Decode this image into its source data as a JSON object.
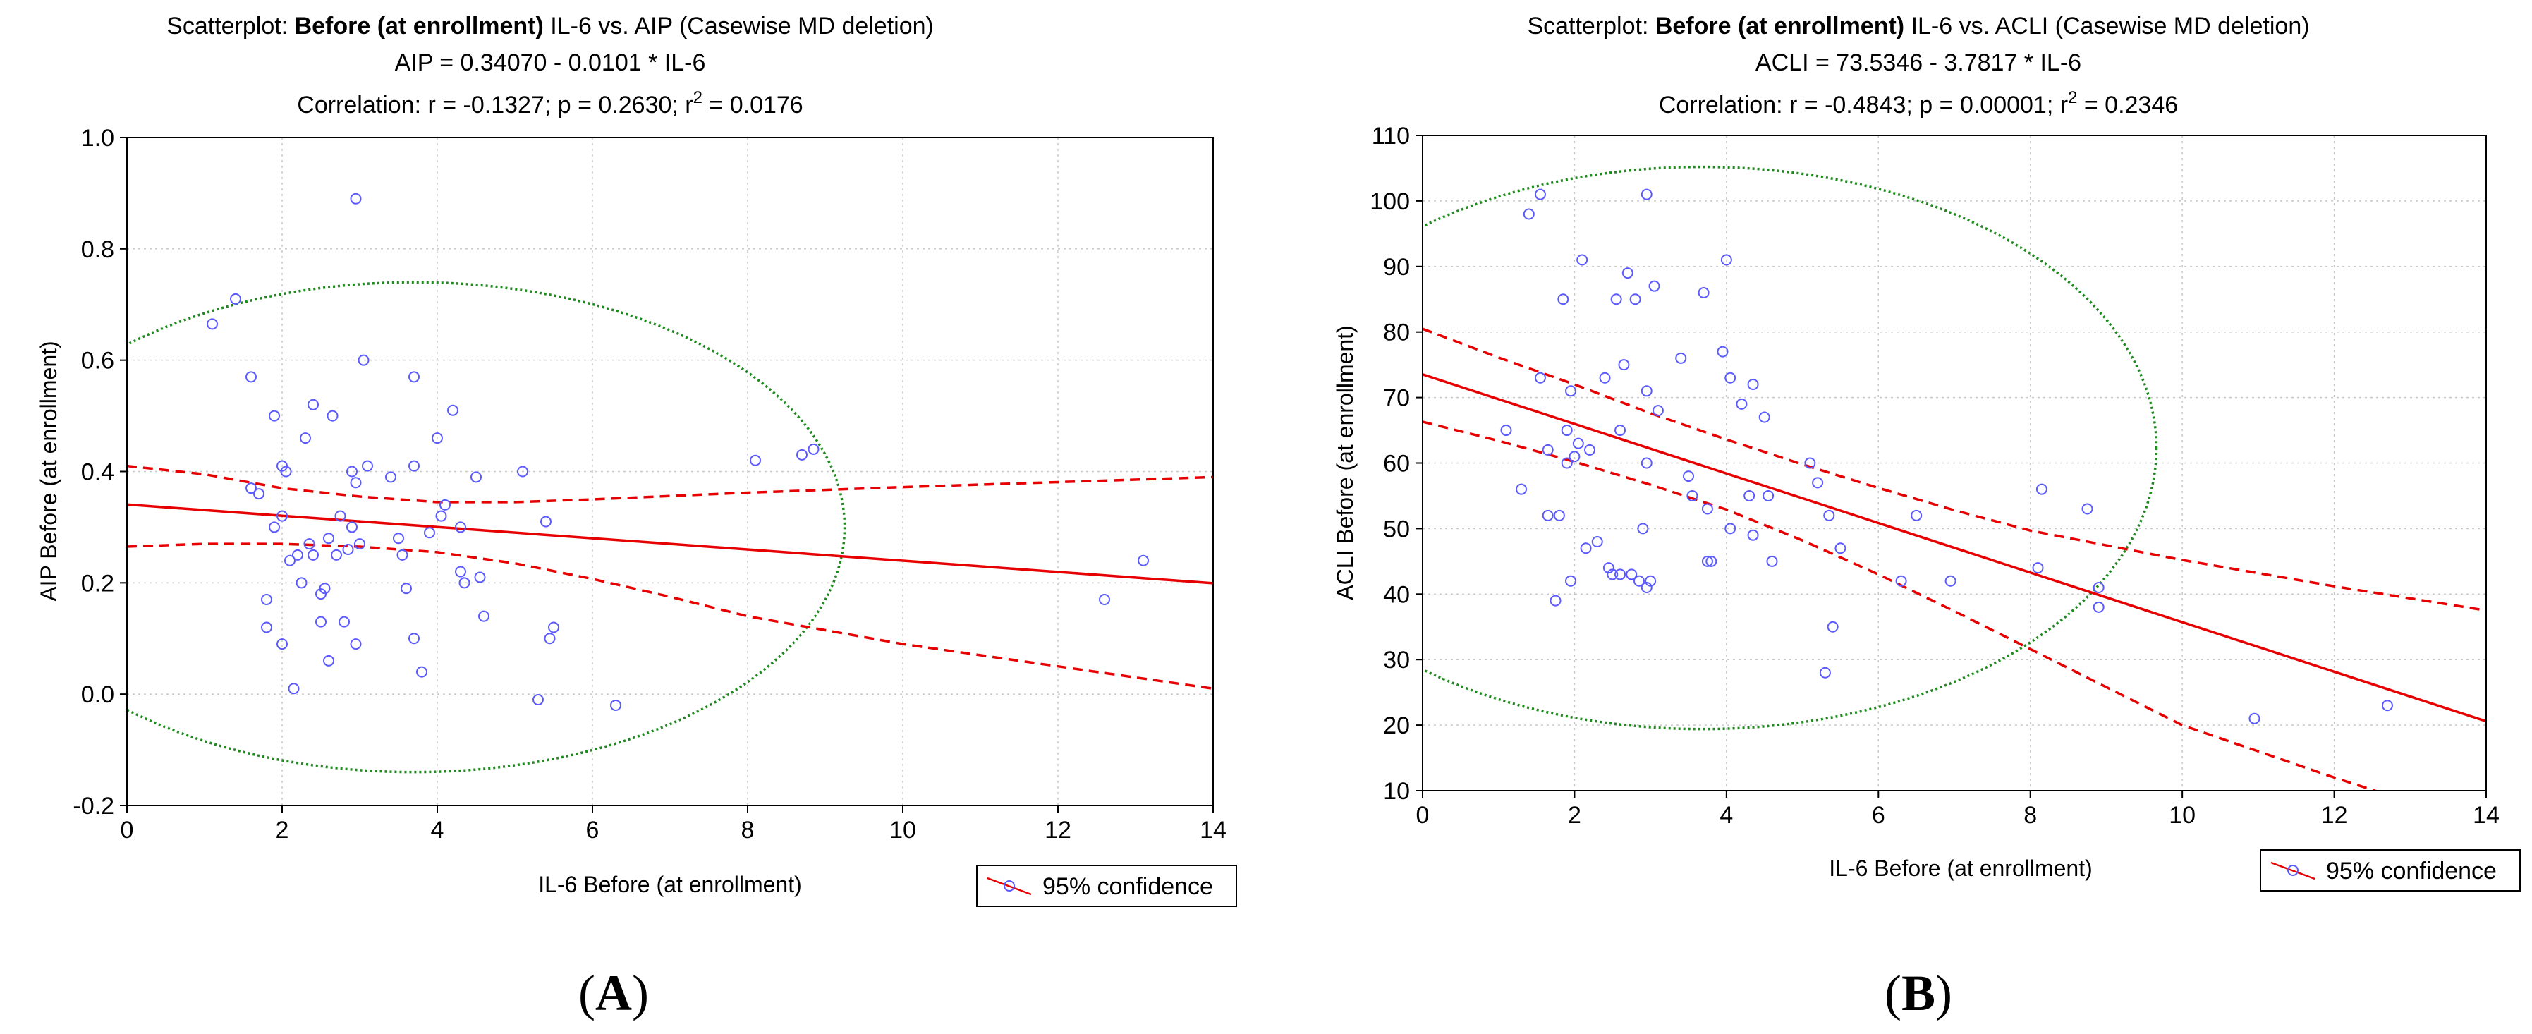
{
  "chart_data": [
    {
      "type": "scatter",
      "panel_label": "A",
      "title_line1": {
        "prefix": "Scatterplot: ",
        "bold": "Before (at enrollment)",
        "suffix": " IL-6 vs. AIP (Casewise MD deletion)"
      },
      "title_line2": "AIP = 0.34070 - 0.0101  * IL-6",
      "title_line3": {
        "text": "Correlation:  r  = -0.1327; p = 0.2630; r",
        "sup": "2",
        "after": " = 0.0176"
      },
      "xlabel": "IL-6 Before (at enrollment)",
      "ylabel": "AIP Before (at enrollment)",
      "xlim": [
        0,
        14
      ],
      "ylim": [
        -0.2,
        1.0
      ],
      "xticks": [
        0,
        2,
        4,
        6,
        8,
        10,
        12,
        14
      ],
      "yticks": [
        -0.2,
        0.0,
        0.2,
        0.4,
        0.6,
        0.8,
        1.0
      ],
      "xtick_labels": [
        "0",
        "2",
        "4",
        "6",
        "8",
        "10",
        "12",
        "14"
      ],
      "ytick_labels": [
        "-0.2",
        "0.0",
        "0.2",
        "0.4",
        "0.6",
        "0.8",
        "1.0"
      ],
      "regression": {
        "intercept": 0.3407,
        "slope": -0.0101
      },
      "ci_upper": [
        [
          0,
          0.41
        ],
        [
          1,
          0.395
        ],
        [
          2,
          0.37
        ],
        [
          3,
          0.355
        ],
        [
          4,
          0.345
        ],
        [
          5,
          0.345
        ],
        [
          6,
          0.35
        ],
        [
          7,
          0.356
        ],
        [
          8,
          0.362
        ],
        [
          10,
          0.372
        ],
        [
          12,
          0.381
        ],
        [
          14,
          0.39
        ]
      ],
      "ci_lower": [
        [
          0,
          0.265
        ],
        [
          1,
          0.27
        ],
        [
          2,
          0.27
        ],
        [
          3,
          0.265
        ],
        [
          4,
          0.255
        ],
        [
          5,
          0.235
        ],
        [
          6,
          0.207
        ],
        [
          7,
          0.175
        ],
        [
          8,
          0.14
        ],
        [
          10,
          0.09
        ],
        [
          12,
          0.05
        ],
        [
          14,
          0.01
        ]
      ],
      "ellipse": {
        "cx": 3.7,
        "cy": 0.3,
        "rx": 5.55,
        "ry": 0.44
      },
      "legend": {
        "label": "95% confidence",
        "position": "bottom-right"
      },
      "points": [
        [
          1.1,
          0.665
        ],
        [
          1.4,
          0.71
        ],
        [
          1.6,
          0.57
        ],
        [
          1.6,
          0.37
        ],
        [
          1.7,
          0.36
        ],
        [
          1.8,
          0.17
        ],
        [
          1.8,
          0.12
        ],
        [
          1.9,
          0.3
        ],
        [
          1.9,
          0.5
        ],
        [
          2.0,
          0.41
        ],
        [
          2.0,
          0.32
        ],
        [
          2.0,
          0.09
        ],
        [
          2.05,
          0.4
        ],
        [
          2.1,
          0.24
        ],
        [
          2.15,
          0.01
        ],
        [
          2.2,
          0.25
        ],
        [
          2.25,
          0.2
        ],
        [
          2.3,
          0.46
        ],
        [
          2.35,
          0.27
        ],
        [
          2.4,
          0.52
        ],
        [
          2.4,
          0.25
        ],
        [
          2.5,
          0.13
        ],
        [
          2.5,
          0.18
        ],
        [
          2.55,
          0.19
        ],
        [
          2.6,
          0.28
        ],
        [
          2.6,
          0.06
        ],
        [
          2.65,
          0.5
        ],
        [
          2.7,
          0.25
        ],
        [
          2.75,
          0.32
        ],
        [
          2.8,
          0.13
        ],
        [
          2.85,
          0.26
        ],
        [
          2.9,
          0.3
        ],
        [
          2.9,
          0.4
        ],
        [
          2.95,
          0.38
        ],
        [
          2.95,
          0.09
        ],
        [
          2.95,
          0.89
        ],
        [
          3.0,
          0.27
        ],
        [
          3.05,
          0.6
        ],
        [
          3.1,
          0.41
        ],
        [
          3.4,
          0.39
        ],
        [
          3.5,
          0.28
        ],
        [
          3.55,
          0.25
        ],
        [
          3.6,
          0.19
        ],
        [
          3.7,
          0.41
        ],
        [
          3.7,
          0.57
        ],
        [
          3.7,
          0.1
        ],
        [
          3.8,
          0.04
        ],
        [
          3.9,
          0.29
        ],
        [
          4.0,
          0.46
        ],
        [
          4.05,
          0.32
        ],
        [
          4.1,
          0.34
        ],
        [
          4.2,
          0.51
        ],
        [
          4.3,
          0.22
        ],
        [
          4.3,
          0.3
        ],
        [
          4.35,
          0.2
        ],
        [
          4.5,
          0.39
        ],
        [
          4.55,
          0.21
        ],
        [
          4.6,
          0.14
        ],
        [
          5.1,
          0.4
        ],
        [
          5.3,
          -0.01
        ],
        [
          5.4,
          0.31
        ],
        [
          5.45,
          0.1
        ],
        [
          5.5,
          0.12
        ],
        [
          6.3,
          -0.02
        ],
        [
          8.1,
          0.42
        ],
        [
          8.7,
          0.43
        ],
        [
          8.85,
          0.44
        ],
        [
          12.6,
          0.17
        ],
        [
          13.1,
          0.24
        ]
      ]
    },
    {
      "type": "scatter",
      "panel_label": "B",
      "title_line1": {
        "prefix": "Scatterplot: ",
        "bold": "Before (at enrollment)",
        "suffix": " IL-6 vs. ACLI (Casewise MD deletion)"
      },
      "title_line2": "ACLI = 73.5346 - 3.7817 * IL-6",
      "title_line3": {
        "text": "Correlation: r = -0.4843; p = 0.00001; r",
        "sup": "2",
        "after": " = 0.2346"
      },
      "xlabel": "IL-6 Before (at enrollment)",
      "ylabel": "ACLI Before (at enrollment)",
      "xlim": [
        0,
        14
      ],
      "ylim": [
        10,
        110
      ],
      "xticks": [
        0,
        2,
        4,
        6,
        8,
        10,
        12,
        14
      ],
      "yticks": [
        10,
        20,
        30,
        40,
        50,
        60,
        70,
        80,
        90,
        100,
        110
      ],
      "xtick_labels": [
        "0",
        "2",
        "4",
        "6",
        "8",
        "10",
        "12",
        "14"
      ],
      "ytick_labels": [
        "10",
        "20",
        "30",
        "40",
        "50",
        "60",
        "70",
        "80",
        "90",
        "100",
        "110"
      ],
      "regression": {
        "intercept": 73.5346,
        "slope": -3.7817
      },
      "ci_upper": [
        [
          0,
          80.5
        ],
        [
          1,
          76.1
        ],
        [
          2,
          72.0
        ],
        [
          3,
          67.6
        ],
        [
          4,
          63.6
        ],
        [
          5,
          59.8
        ],
        [
          6,
          56.2
        ],
        [
          7,
          52.8
        ],
        [
          8,
          49.7
        ],
        [
          10,
          45.2
        ],
        [
          12,
          41.2
        ],
        [
          14,
          37.5
        ]
      ],
      "ci_lower": [
        [
          0,
          66.3
        ],
        [
          1,
          63.4
        ],
        [
          2,
          60.2
        ],
        [
          3,
          56.7
        ],
        [
          4,
          52.9
        ],
        [
          5,
          48.2
        ],
        [
          6,
          43.0
        ],
        [
          7,
          37.4
        ],
        [
          8,
          31.6
        ],
        [
          10,
          20.0
        ],
        [
          12,
          12.0
        ],
        [
          12.8,
          9.0
        ]
      ],
      "ellipse": {
        "cx": 3.68,
        "cy": 62.3,
        "rx": 5.98,
        "ry": 42.9
      },
      "legend": {
        "label": "95% confidence",
        "position": "bottom-right"
      },
      "points": [
        [
          1.1,
          65
        ],
        [
          1.3,
          56
        ],
        [
          1.4,
          98
        ],
        [
          1.55,
          101
        ],
        [
          1.55,
          73
        ],
        [
          1.65,
          62
        ],
        [
          1.65,
          52
        ],
        [
          1.75,
          39
        ],
        [
          1.8,
          52
        ],
        [
          1.85,
          85
        ],
        [
          1.9,
          65
        ],
        [
          1.9,
          60
        ],
        [
          1.95,
          71
        ],
        [
          1.95,
          42
        ],
        [
          2.0,
          61
        ],
        [
          2.05,
          63
        ],
        [
          2.1,
          91
        ],
        [
          2.15,
          47
        ],
        [
          2.2,
          62
        ],
        [
          2.3,
          48
        ],
        [
          2.4,
          73
        ],
        [
          2.45,
          44
        ],
        [
          2.5,
          43
        ],
        [
          2.55,
          85
        ],
        [
          2.6,
          43
        ],
        [
          2.6,
          65
        ],
        [
          2.65,
          75
        ],
        [
          2.7,
          89
        ],
        [
          2.75,
          43
        ],
        [
          2.8,
          85
        ],
        [
          2.85,
          42
        ],
        [
          2.9,
          50
        ],
        [
          2.95,
          60
        ],
        [
          2.95,
          71
        ],
        [
          2.95,
          101
        ],
        [
          2.95,
          41
        ],
        [
          3.0,
          42
        ],
        [
          3.05,
          87
        ],
        [
          3.1,
          68
        ],
        [
          3.4,
          76
        ],
        [
          3.5,
          58
        ],
        [
          3.55,
          55
        ],
        [
          3.7,
          86
        ],
        [
          3.75,
          53
        ],
        [
          3.75,
          45
        ],
        [
          3.8,
          45
        ],
        [
          3.95,
          77
        ],
        [
          4.0,
          91
        ],
        [
          4.05,
          73
        ],
        [
          4.05,
          50
        ],
        [
          4.2,
          69
        ],
        [
          4.3,
          55
        ],
        [
          4.35,
          49
        ],
        [
          4.35,
          72
        ],
        [
          4.5,
          67
        ],
        [
          4.55,
          55
        ],
        [
          4.6,
          45
        ],
        [
          5.1,
          60
        ],
        [
          5.2,
          57
        ],
        [
          5.3,
          28
        ],
        [
          5.35,
          52
        ],
        [
          5.4,
          35
        ],
        [
          5.5,
          47
        ],
        [
          6.3,
          42
        ],
        [
          6.5,
          52
        ],
        [
          6.95,
          42
        ],
        [
          8.1,
          44
        ],
        [
          8.15,
          56
        ],
        [
          8.75,
          53
        ],
        [
          8.9,
          41
        ],
        [
          8.9,
          38
        ],
        [
          10.95,
          21
        ],
        [
          12.7,
          23
        ]
      ]
    }
  ]
}
